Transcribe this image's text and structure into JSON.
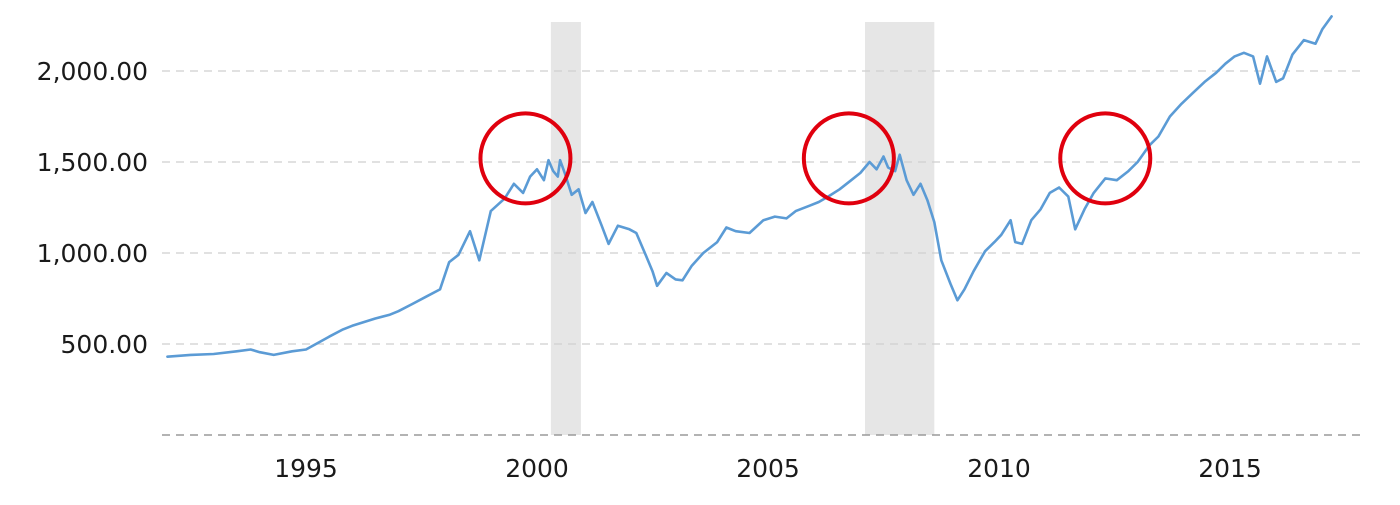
{
  "chart_data": {
    "type": "line",
    "title": "",
    "xlabel": "",
    "ylabel": "",
    "x_ticks": [
      1995,
      2000,
      2005,
      2010,
      2015
    ],
    "y_ticks": [
      500,
      1000,
      1500,
      2000
    ],
    "y_tick_labels": [
      "500.00",
      "1,000.00",
      "1,500.00",
      "2,000.00"
    ],
    "x_tick_labels": [
      "1995",
      "2000",
      "2005",
      "2010",
      "2015"
    ],
    "xlim": [
      1992.0,
      2018.0
    ],
    "ylim": [
      0,
      2300
    ],
    "grid": "horizontal dashed",
    "line_color": "#5b9bd5",
    "recession_shading": [
      {
        "start": 2000.3,
        "end": 2000.95
      },
      {
        "start": 2007.1,
        "end": 2008.6
      }
    ],
    "recession_color": "#e6e6e6",
    "highlight_circles": [
      {
        "x": 1999.75,
        "y": 1520
      },
      {
        "x": 2006.75,
        "y": 1520
      },
      {
        "x": 2012.3,
        "y": 1520
      }
    ],
    "circle_color": "#e0000e",
    "series": [
      {
        "points": [
          [
            1992.0,
            430
          ],
          [
            1992.5,
            440
          ],
          [
            1993.0,
            445
          ],
          [
            1993.5,
            460
          ],
          [
            1993.8,
            470
          ],
          [
            1994.0,
            455
          ],
          [
            1994.3,
            440
          ],
          [
            1994.7,
            460
          ],
          [
            1995.0,
            470
          ],
          [
            1995.5,
            540
          ],
          [
            1995.8,
            580
          ],
          [
            1996.0,
            600
          ],
          [
            1996.5,
            640
          ],
          [
            1996.8,
            660
          ],
          [
            1997.0,
            680
          ],
          [
            1997.3,
            720
          ],
          [
            1997.6,
            760
          ],
          [
            1997.9,
            800
          ],
          [
            1998.1,
            950
          ],
          [
            1998.3,
            990
          ],
          [
            1998.55,
            1120
          ],
          [
            1998.75,
            960
          ],
          [
            1999.0,
            1230
          ],
          [
            1999.3,
            1300
          ],
          [
            1999.5,
            1380
          ],
          [
            1999.7,
            1330
          ],
          [
            1999.85,
            1420
          ],
          [
            2000.0,
            1460
          ],
          [
            2000.15,
            1400
          ],
          [
            2000.25,
            1510
          ],
          [
            2000.35,
            1450
          ],
          [
            2000.45,
            1420
          ],
          [
            2000.5,
            1510
          ],
          [
            2000.6,
            1440
          ],
          [
            2000.75,
            1320
          ],
          [
            2000.9,
            1350
          ],
          [
            2001.05,
            1220
          ],
          [
            2001.2,
            1280
          ],
          [
            2001.4,
            1150
          ],
          [
            2001.55,
            1050
          ],
          [
            2001.75,
            1150
          ],
          [
            2002.0,
            1130
          ],
          [
            2002.15,
            1110
          ],
          [
            2002.35,
            990
          ],
          [
            2002.5,
            900
          ],
          [
            2002.6,
            820
          ],
          [
            2002.8,
            890
          ],
          [
            2003.0,
            855
          ],
          [
            2003.15,
            850
          ],
          [
            2003.35,
            930
          ],
          [
            2003.6,
            1000
          ],
          [
            2003.9,
            1060
          ],
          [
            2004.1,
            1140
          ],
          [
            2004.3,
            1120
          ],
          [
            2004.6,
            1110
          ],
          [
            2004.9,
            1180
          ],
          [
            2005.15,
            1200
          ],
          [
            2005.4,
            1190
          ],
          [
            2005.6,
            1230
          ],
          [
            2005.9,
            1260
          ],
          [
            2006.1,
            1280
          ],
          [
            2006.3,
            1310
          ],
          [
            2006.55,
            1350
          ],
          [
            2006.8,
            1400
          ],
          [
            2007.0,
            1440
          ],
          [
            2007.2,
            1500
          ],
          [
            2007.35,
            1460
          ],
          [
            2007.5,
            1530
          ],
          [
            2007.6,
            1470
          ],
          [
            2007.75,
            1450
          ],
          [
            2007.85,
            1540
          ],
          [
            2008.0,
            1400
          ],
          [
            2008.15,
            1320
          ],
          [
            2008.3,
            1380
          ],
          [
            2008.45,
            1290
          ],
          [
            2008.6,
            1170
          ],
          [
            2008.75,
            960
          ],
          [
            2008.95,
            830
          ],
          [
            2009.1,
            740
          ],
          [
            2009.25,
            800
          ],
          [
            2009.45,
            900
          ],
          [
            2009.7,
            1010
          ],
          [
            2009.9,
            1060
          ],
          [
            2010.05,
            1100
          ],
          [
            2010.25,
            1180
          ],
          [
            2010.35,
            1060
          ],
          [
            2010.5,
            1050
          ],
          [
            2010.7,
            1180
          ],
          [
            2010.9,
            1240
          ],
          [
            2011.1,
            1330
          ],
          [
            2011.3,
            1360
          ],
          [
            2011.5,
            1310
          ],
          [
            2011.65,
            1130
          ],
          [
            2011.85,
            1240
          ],
          [
            2012.05,
            1330
          ],
          [
            2012.3,
            1410
          ],
          [
            2012.55,
            1400
          ],
          [
            2012.8,
            1450
          ],
          [
            2013.0,
            1500
          ],
          [
            2013.25,
            1590
          ],
          [
            2013.45,
            1640
          ],
          [
            2013.7,
            1750
          ],
          [
            2013.95,
            1820
          ],
          [
            2014.2,
            1880
          ],
          [
            2014.45,
            1940
          ],
          [
            2014.7,
            1990
          ],
          [
            2014.9,
            2040
          ],
          [
            2015.1,
            2080
          ],
          [
            2015.3,
            2100
          ],
          [
            2015.5,
            2080
          ],
          [
            2015.65,
            1930
          ],
          [
            2015.8,
            2080
          ],
          [
            2016.0,
            1940
          ],
          [
            2016.15,
            1960
          ],
          [
            2016.35,
            2090
          ],
          [
            2016.6,
            2170
          ],
          [
            2016.85,
            2150
          ],
          [
            2017.0,
            2230
          ],
          [
            2017.2,
            2300
          ]
        ]
      }
    ]
  }
}
